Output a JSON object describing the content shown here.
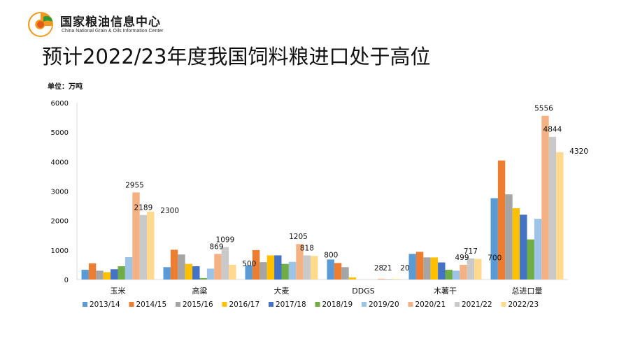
{
  "logo": {
    "name_cn": "国家粮油信息中心",
    "name_en": "China National Grain & Oils Information Center"
  },
  "slide_title": "预计2022/23年度我国饲料粮进口处于高位",
  "unit_label": "单位：万吨",
  "colors": {
    "2013/14": "#5b9bd5",
    "2014/15": "#ed7d31",
    "2015/16": "#a5a5a5",
    "2016/17": "#ffc000",
    "2017/18": "#4472c4",
    "2018/19": "#70ad47",
    "2019/20": "#9dc3e6",
    "2020/21": "#f4b183",
    "2021/22": "#c9c9c9",
    "2022/23": "#ffd98e"
  },
  "chart_data": {
    "type": "bar",
    "title": "",
    "xlabel": "",
    "ylabel": "",
    "ylim": [
      0,
      6000
    ],
    "yticks": [
      "0",
      "1000",
      "2000",
      "3000",
      "4000",
      "5000",
      "6000"
    ],
    "grid": false,
    "legend_position": "bottom",
    "categories": [
      "玉米",
      "高粱",
      "大麦",
      "DDGS",
      "木薯干",
      "总进口量"
    ],
    "series": [
      {
        "name": "2013/14",
        "values": [
          330,
          420,
          480,
          680,
          870,
          2760
        ]
      },
      {
        "name": "2014/15",
        "values": [
          550,
          1010,
          1000,
          560,
          940,
          4040
        ]
      },
      {
        "name": "2015/16",
        "values": [
          300,
          850,
          590,
          420,
          750,
          2890
        ]
      },
      {
        "name": "2016/17",
        "values": [
          250,
          530,
          820,
          70,
          750,
          2420
        ]
      },
      {
        "name": "2017/18",
        "values": [
          350,
          450,
          820,
          0,
          580,
          2200
        ]
      },
      {
        "name": "2018/19",
        "values": [
          450,
          50,
          530,
          0,
          330,
          1360
        ]
      },
      {
        "name": "2019/20",
        "values": [
          760,
          370,
          600,
          0,
          300,
          2060
        ]
      },
      {
        "name": "2020/21",
        "values": [
          2955,
          869,
          1205,
          28,
          499,
          5556
        ]
      },
      {
        "name": "2021/22",
        "values": [
          2189,
          1099,
          818,
          21,
          717,
          4844
        ]
      },
      {
        "name": "2022/23",
        "values": [
          2300,
          500,
          800,
          20,
          700,
          4320
        ]
      }
    ],
    "data_labels": [
      {
        "category": "玉米",
        "series": "2020/21",
        "text": "2955"
      },
      {
        "category": "玉米",
        "series": "2021/22",
        "text": "2189"
      },
      {
        "category": "玉米",
        "series": "2022/23",
        "text": "2300"
      },
      {
        "category": "高粱",
        "series": "2020/21",
        "text": "869"
      },
      {
        "category": "高粱",
        "series": "2021/22",
        "text": "1099"
      },
      {
        "category": "高粱",
        "series": "2022/23",
        "text": "500"
      },
      {
        "category": "大麦",
        "series": "2020/21",
        "text": "1205"
      },
      {
        "category": "大麦",
        "series": "2021/22",
        "text": "818"
      },
      {
        "category": "大麦",
        "series": "2022/23",
        "text": "800"
      },
      {
        "category": "DDGS",
        "series": "2020/21",
        "text": "28"
      },
      {
        "category": "DDGS",
        "series": "2021/22",
        "text": "21"
      },
      {
        "category": "DDGS",
        "series": "2022/23",
        "text": "20"
      },
      {
        "category": "木薯干",
        "series": "2020/21",
        "text": "499"
      },
      {
        "category": "木薯干",
        "series": "2021/22",
        "text": "717"
      },
      {
        "category": "木薯干",
        "series": "2022/23",
        "text": "700"
      },
      {
        "category": "总进口量",
        "series": "2020/21",
        "text": "5556"
      },
      {
        "category": "总进口量",
        "series": "2021/22",
        "text": "4844"
      },
      {
        "category": "总进口量",
        "series": "2022/23",
        "text": "4320"
      }
    ]
  }
}
